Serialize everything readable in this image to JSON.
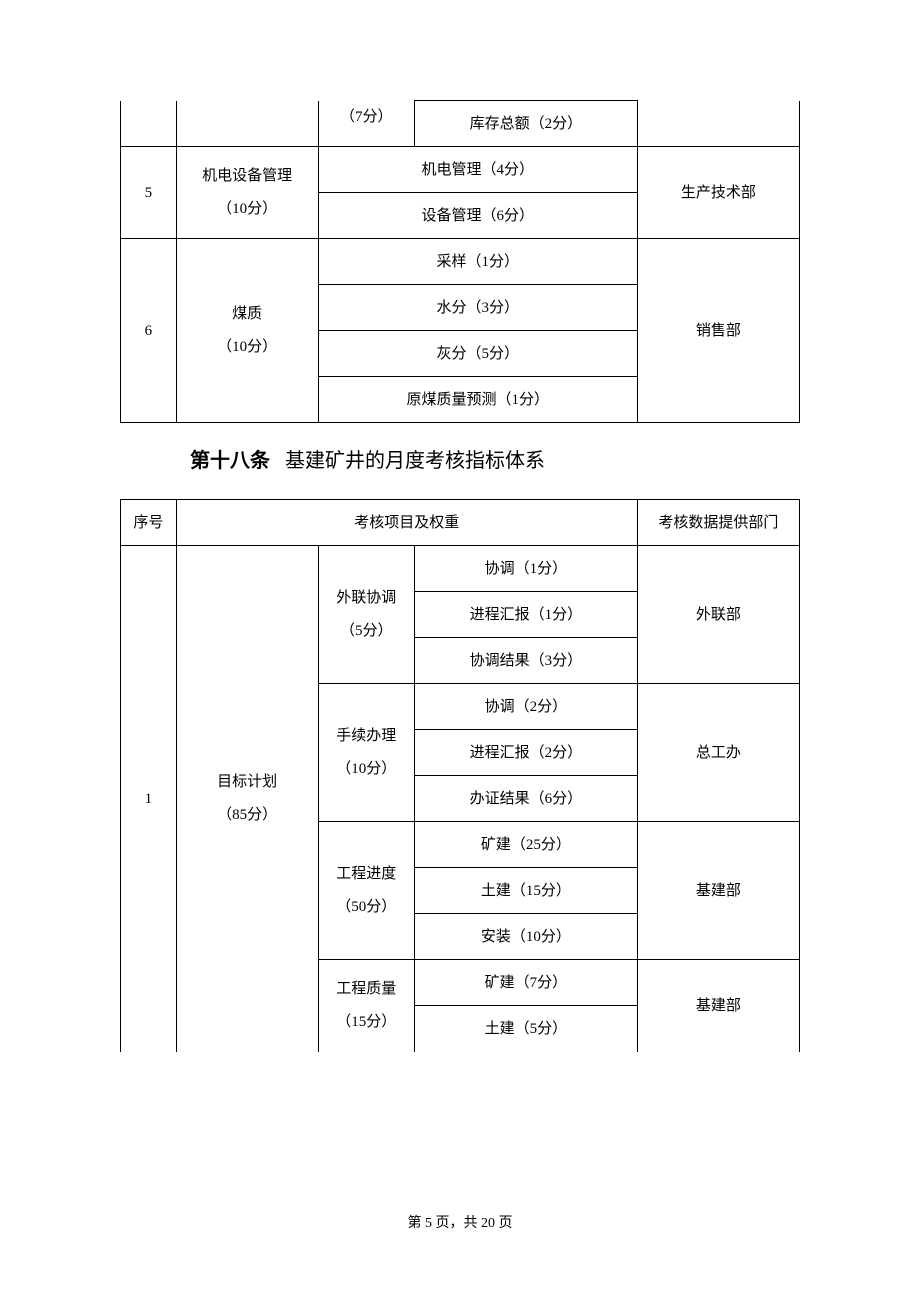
{
  "table1": {
    "row0_sub": "（7分）",
    "row0_detail": "库存总额（2分）",
    "row5": {
      "num": "5",
      "item_line1": "机电设备管理",
      "item_line2": "（10分）",
      "detail1": "机电管理（4分）",
      "detail2": "设备管理（6分）",
      "dept": "生产技术部"
    },
    "row6": {
      "num": "6",
      "item_line1": "煤质",
      "item_line2": "（10分）",
      "detail1": "采样（1分）",
      "detail2": "水分（3分）",
      "detail3": "灰分（5分）",
      "detail4": "原煤质量预测（1分）",
      "dept": "销售部"
    }
  },
  "article": {
    "label": "第十八条",
    "text": "基建矿井的月度考核指标体系"
  },
  "table2": {
    "header": {
      "col1": "序号",
      "col2": "考核项目及权重",
      "col3": "考核数据提供部门"
    },
    "row1": {
      "num": "1",
      "item_line1": "目标计划",
      "item_line2": "（85分）",
      "group1": {
        "sub_line1": "外联协调",
        "sub_line2": "（5分）",
        "detail1": "协调（1分）",
        "detail2": "进程汇报（1分）",
        "detail3": "协调结果（3分）",
        "dept": "外联部"
      },
      "group2": {
        "sub_line1": "手续办理",
        "sub_line2": "（10分）",
        "detail1": "协调（2分）",
        "detail2": "进程汇报（2分）",
        "detail3": "办证结果（6分）",
        "dept": "总工办"
      },
      "group3": {
        "sub_line1": "工程进度",
        "sub_line2": "（50分）",
        "detail1": "矿建（25分）",
        "detail2": "土建（15分）",
        "detail3": "安装（10分）",
        "dept": "基建部"
      },
      "group4": {
        "sub_line1": "工程质量",
        "sub_line2": "（15分）",
        "detail1": "矿建（7分）",
        "detail2": "土建（5分）",
        "dept": "基建部"
      }
    }
  },
  "footer": "第 5 页，共 20 页"
}
